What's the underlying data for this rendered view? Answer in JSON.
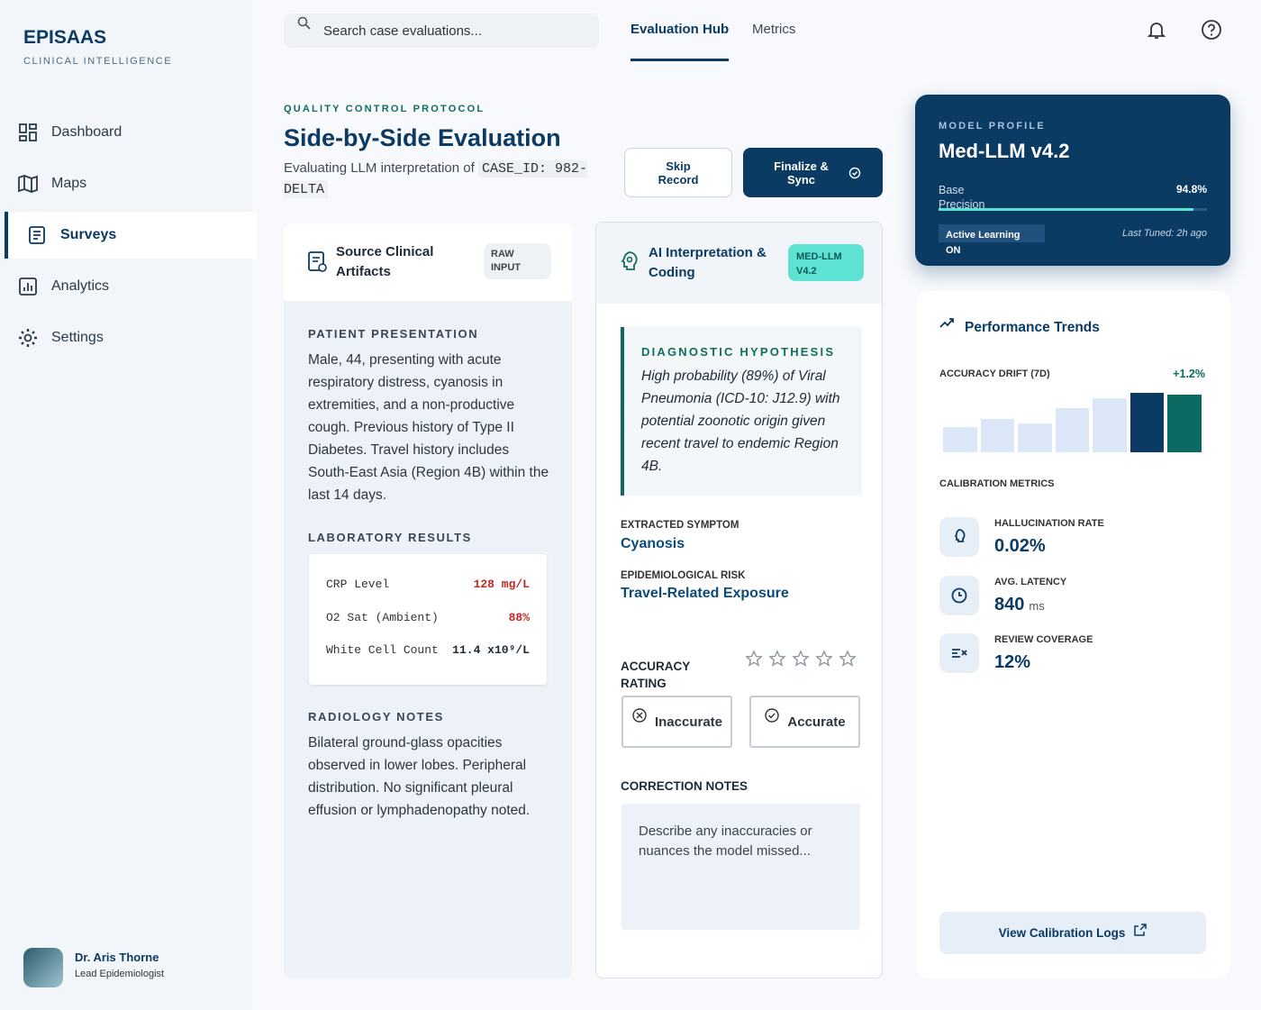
{
  "sidebar": {
    "brand": "EPISAAS",
    "tagline": "CLINICAL INTELLIGENCE",
    "nav": [
      "Dashboard",
      "Maps",
      "Surveys",
      "Analytics",
      "Settings"
    ],
    "active": 2,
    "user": {
      "name": "Dr. Aris Thorne",
      "role": "Lead Epidemiologist"
    }
  },
  "topbar": {
    "search_placeholder": "Search case evaluations...",
    "tabs": [
      "Evaluation Hub",
      "Metrics"
    ],
    "active_tab": 0
  },
  "header": {
    "eyebrow": "QUALITY CONTROL PROTOCOL",
    "title": "Side-by-Side Evaluation",
    "subtitle": "Evaluating LLM interpretation of",
    "case_id": "CASE_ID: 982-DELTA",
    "skip": "Skip Record",
    "finalize": "Finalize & Sync"
  },
  "source": {
    "title": "Source Clinical Artifacts",
    "badge": "RAW INPUT",
    "presentation_label": "PATIENT PRESENTATION",
    "presentation": "Male, 44, presenting with acute respiratory distress, cyanosis in extremities, and a non-productive cough. Previous history of Type II Diabetes. Travel history includes South-East Asia (Region 4B) within the last 14 days.",
    "lab_label": "LABORATORY RESULTS",
    "labs": [
      {
        "name": "CRP Level",
        "value": "128 mg/L",
        "flag": true
      },
      {
        "name": "O2 Sat (Ambient)",
        "value": "88%",
        "flag": true
      },
      {
        "name": "White Cell Count",
        "value": "11.4 x10⁹/L",
        "flag": false
      }
    ],
    "radiology_label": "RADIOLOGY NOTES",
    "radiology": "Bilateral ground-glass opacities observed in lower lobes. Peripheral distribution. No significant pleural effusion or lymphadenopathy noted."
  },
  "ai": {
    "title": "AI Interpretation & Coding",
    "badge": "MED-LLM V4.2",
    "hypothesis_label": "DIAGNOSTIC HYPOTHESIS",
    "hypothesis": "High probability (89%) of Viral Pneumonia (ICD-10: J12.9) with potential zoonotic origin given recent travel to endemic Region 4B.",
    "symptom_label": "EXTRACTED SYMPTOM",
    "symptom": "Cyanosis",
    "risk_label": "EPIDEMIOLOGICAL RISK",
    "risk": "Travel-Related Exposure",
    "rating_label": "ACCURACY RATING",
    "inaccurate": "Inaccurate",
    "accurate": "Accurate",
    "notes_label": "CORRECTION NOTES",
    "notes_placeholder": "Describe any inaccuracies or nuances the model missed..."
  },
  "model": {
    "eyebrow": "MODEL PROFILE",
    "name": "Med-LLM v4.2",
    "precision_label": "Base Precision",
    "precision": {
      "value": 94.8,
      "label": "94.8%"
    },
    "mode": "Active Learning ON",
    "tuned": "Last Tuned: 2h ago"
  },
  "performance": {
    "title": "Performance Trends",
    "drift_label": "ACCURACY DRIFT (7D)",
    "drift": "+1.2%",
    "drift_bars": {
      "type": "bar",
      "values": [
        28,
        37,
        32,
        49,
        60,
        66,
        64
      ],
      "colors": [
        "#dbe7f6",
        "#dbe7f6",
        "#dbe7f6",
        "#dbe7f6",
        "#dbe7f6",
        "#0b3a63",
        "#0b6b63"
      ]
    },
    "calibration_label": "CALIBRATION METRICS",
    "metrics": [
      {
        "label": "HALLUCINATION RATE",
        "value": "0.02%"
      },
      {
        "label": "AVG. LATENCY",
        "value": "840",
        "unit": "ms"
      },
      {
        "label": "REVIEW COVERAGE",
        "value": "12%"
      }
    ],
    "button": "View Calibration Logs"
  }
}
